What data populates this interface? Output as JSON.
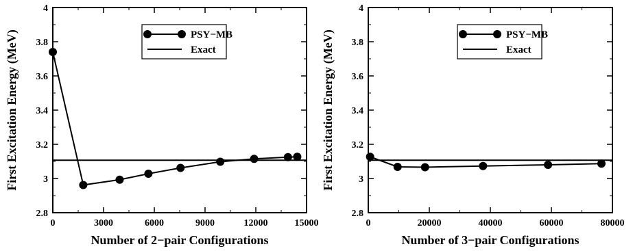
{
  "chart_data": [
    {
      "type": "line",
      "xlabel": "Number of 2−pair Configurations",
      "ylabel": "First Excitation Energy (MeV)",
      "xlim": [
        0,
        15000
      ],
      "ylim": [
        2.8,
        4.0
      ],
      "xticks": [
        0,
        3000,
        6000,
        9000,
        12000,
        15000
      ],
      "xtick_labels": [
        "0",
        "3000",
        "6000",
        "9000",
        "12000",
        "15000"
      ],
      "yticks": [
        2.8,
        3.0,
        3.2,
        3.4,
        3.6,
        3.8,
        4.0
      ],
      "ytick_labels": [
        "2.8",
        "3",
        "3.2",
        "3.4",
        "3.6",
        "3.8",
        "4"
      ],
      "grid": false,
      "legend_position": "top-right",
      "series": [
        {
          "name": "PSY−MB",
          "style": "line-with-markers",
          "color": "#000000",
          "x": [
            0,
            1800,
            3950,
            5650,
            7550,
            9900,
            11900,
            13900,
            14450
          ],
          "y": [
            3.74,
            2.962,
            2.993,
            3.028,
            3.062,
            3.098,
            3.115,
            3.125,
            3.127
          ]
        },
        {
          "name": "Exact",
          "style": "horizontal-line",
          "color": "#000000",
          "y": 3.107
        }
      ]
    },
    {
      "type": "line",
      "xlabel": "Number of 3−pair Configurations",
      "ylabel": "First Excitation Energy (MeV)",
      "xlim": [
        0,
        80000
      ],
      "ylim": [
        2.8,
        4.0
      ],
      "xticks": [
        0,
        20000,
        40000,
        60000,
        80000
      ],
      "xtick_labels": [
        "0",
        "20000",
        "40000",
        "60000",
        "80000"
      ],
      "yticks": [
        2.8,
        3.0,
        3.2,
        3.4,
        3.6,
        3.8,
        4.0
      ],
      "ytick_labels": [
        "2.8",
        "3",
        "3.2",
        "3.4",
        "3.6",
        "3.8",
        "4"
      ],
      "grid": false,
      "legend_position": "top-right",
      "series": [
        {
          "name": "PSY−MB",
          "style": "line-with-markers",
          "color": "#000000",
          "x": [
            600,
            9600,
            18600,
            37600,
            58900,
            76400
          ],
          "y": [
            3.127,
            3.068,
            3.066,
            3.073,
            3.08,
            3.087
          ]
        },
        {
          "name": "Exact",
          "style": "horizontal-line",
          "color": "#000000",
          "y": 3.107
        }
      ]
    }
  ]
}
